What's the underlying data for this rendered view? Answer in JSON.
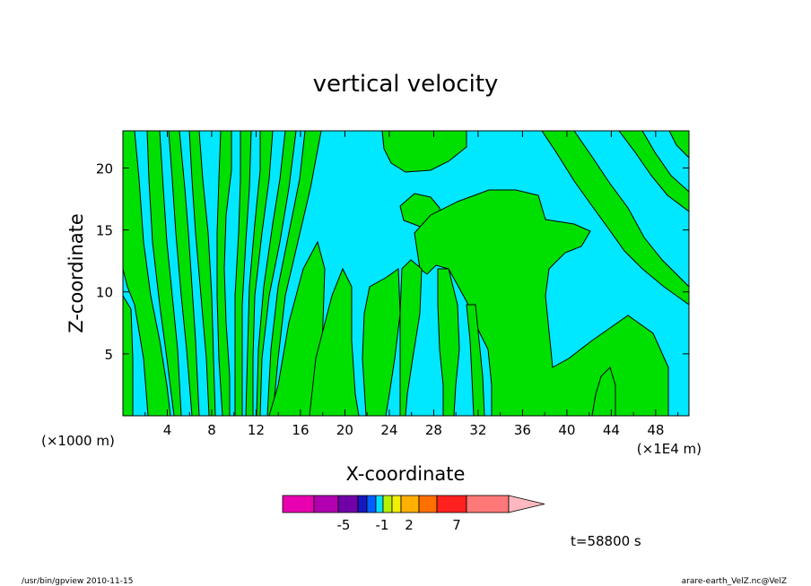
{
  "chart_data": {
    "type": "heatmap",
    "title": "vertical velocity",
    "xlabel": "X-coordinate",
    "ylabel": "Z-coordinate",
    "x_unit_left": "(×1000 m)",
    "x_unit_right": "(×1E4 m)",
    "xlim": [
      0,
      51
    ],
    "ylim": [
      0,
      23
    ],
    "x_ticks": [
      "4",
      "8",
      "12",
      "16",
      "20",
      "24",
      "28",
      "32",
      "36",
      "40",
      "44",
      "48"
    ],
    "y_ticks": [
      "5",
      "10",
      "15",
      "20"
    ],
    "time_label": "t=58800 s",
    "colors": {
      "negative_fill": "#00e8ff",
      "positive_fill": "#00e000",
      "contour": "#000000",
      "frame": "#000000"
    },
    "colorbar": {
      "tick_labels": [
        "-5",
        "-1",
        "2",
        "7"
      ],
      "segments": [
        "#e800b0",
        "#b000b0",
        "#7000a8",
        "#1818c0",
        "#0060ff",
        "#00e0ff",
        "#b8f000",
        "#f0f000",
        "#ffb000",
        "#ff7000",
        "#ff2020",
        "#ff7878"
      ],
      "arrow_color": "#ffb8c0"
    }
  },
  "footer": {
    "left": "/usr/bin/gpview   2010-11-15",
    "right": "arare-earth_VelZ.nc@VelZ"
  }
}
